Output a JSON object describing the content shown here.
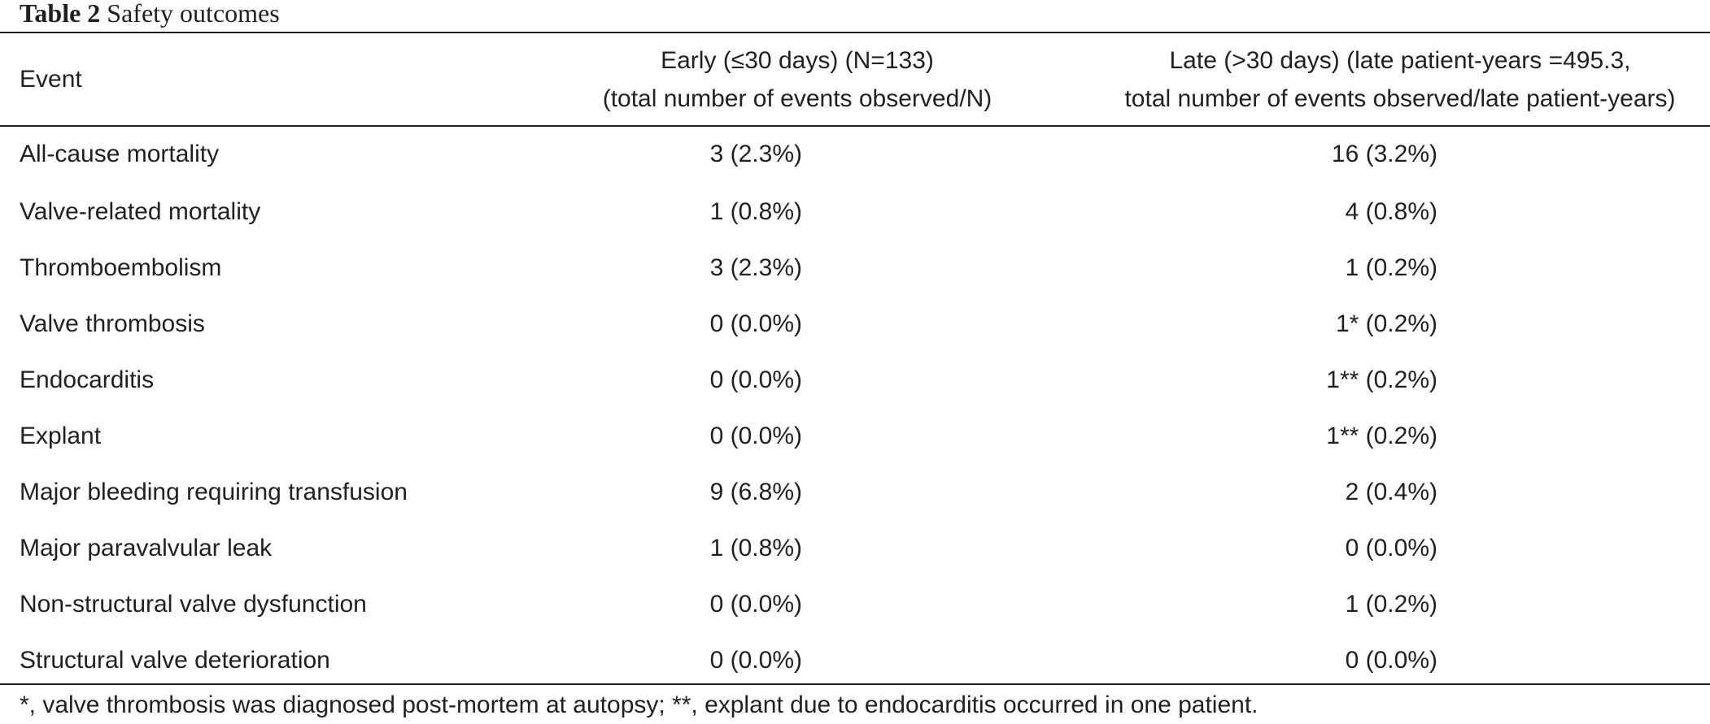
{
  "caption": {
    "label": "Table 2",
    "title": "Safety outcomes"
  },
  "table": {
    "headers": {
      "event": "Event",
      "early_line1": "Early (≤30 days) (N=133)",
      "early_line2": "(total number of events observed/N)",
      "late_line1": "Late (>30 days) (late patient-years =495.3,",
      "late_line2": "total number of events observed/late patient-years)"
    },
    "rows": [
      {
        "event": "All-cause mortality",
        "early": "3 (2.3%)",
        "late": "16 (3.2%)"
      },
      {
        "event": "Valve-related mortality",
        "early": "1 (0.8%)",
        "late": "4 (0.8%)"
      },
      {
        "event": "Thromboembolism",
        "early": "3 (2.3%)",
        "late": "1 (0.2%)"
      },
      {
        "event": "Valve thrombosis",
        "early": "0 (0.0%)",
        "late": "1* (0.2%)"
      },
      {
        "event": "Endocarditis",
        "early": "0 (0.0%)",
        "late": "1** (0.2%)"
      },
      {
        "event": "Explant",
        "early": "0 (0.0%)",
        "late": "1** (0.2%)"
      },
      {
        "event": "Major bleeding requiring transfusion",
        "early": "9 (6.8%)",
        "late": "2 (0.4%)"
      },
      {
        "event": "Major paravalvular leak",
        "early": "1 (0.8%)",
        "late": "0 (0.0%)"
      },
      {
        "event": "Non-structural valve dysfunction",
        "early": "0 (0.0%)",
        "late": "1 (0.2%)"
      },
      {
        "event": "Structural valve deterioration",
        "early": "0 (0.0%)",
        "late": "0 (0.0%)"
      }
    ]
  },
  "footnote": "*, valve thrombosis was diagnosed post-mortem at autopsy; **, explant due to endocarditis occurred in one patient."
}
